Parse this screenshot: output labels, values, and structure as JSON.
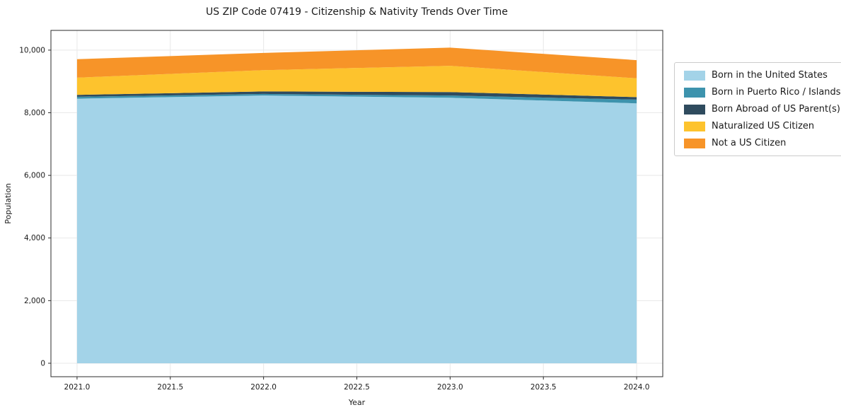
{
  "chart_data": {
    "type": "area",
    "stacked": true,
    "title": "US ZIP Code 07419 - Citizenship & Nativity Trends Over Time",
    "xlabel": "Year",
    "ylabel": "Population",
    "x": [
      2021,
      2022,
      2023,
      2024
    ],
    "series": [
      {
        "name": "Born in the United States",
        "color": "#a3d3e8",
        "values": [
          8450,
          8550,
          8480,
          8300
        ]
      },
      {
        "name": "Born in Puerto Rico / Islands",
        "color": "#3d93ad",
        "values": [
          60,
          50,
          70,
          120
        ]
      },
      {
        "name": "Born Abroad of US Parent(s)",
        "color": "#2f4b5e",
        "values": [
          60,
          80,
          110,
          80
        ]
      },
      {
        "name": "Naturalized US Citizen",
        "color": "#fdc32d",
        "values": [
          550,
          680,
          840,
          600
        ]
      },
      {
        "name": "Not a US Citizen",
        "color": "#f79428",
        "values": [
          590,
          550,
          580,
          580
        ]
      }
    ],
    "totals": [
      9710,
      9910,
      10080,
      9680
    ],
    "xlim": [
      2020.86,
      2024.14
    ],
    "ylim": [
      -430,
      10630
    ],
    "xticks": [
      2021.0,
      2021.5,
      2022.0,
      2022.5,
      2023.0,
      2023.5,
      2024.0
    ],
    "yticks": [
      0,
      2000,
      4000,
      6000,
      8000,
      10000
    ],
    "grid": true,
    "legend_position": "right"
  }
}
